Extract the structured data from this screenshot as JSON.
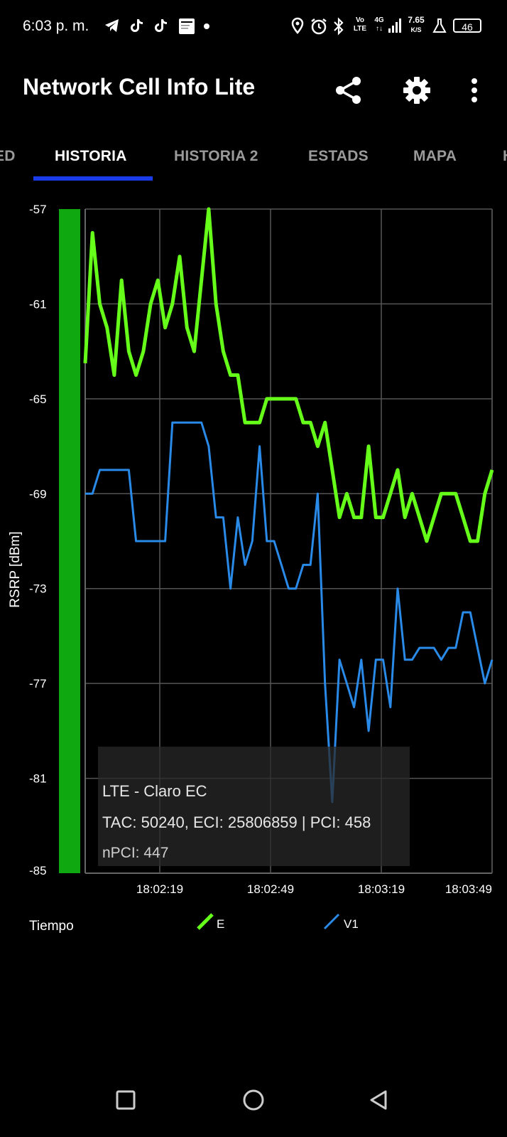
{
  "status_bar": {
    "time": "6:03 p. m.",
    "volte_top": "Vo",
    "volte_bottom": "LTE",
    "network_type": "4G",
    "network_sub": "↑↓",
    "speed_value": "7.65",
    "speed_unit": "K/S",
    "battery": "46",
    "icons": [
      "telegram-icon",
      "tiktok-icon",
      "tiktok-icon",
      "notification-icon",
      "dot-icon",
      "location-icon",
      "alarm-icon",
      "bluetooth-icon",
      "signal-icon",
      "flask-icon",
      "battery-icon"
    ]
  },
  "app_bar": {
    "title": "Network Cell Info Lite",
    "actions": [
      "share-icon",
      "settings-icon",
      "more-icon"
    ]
  },
  "tabs": [
    {
      "label": "ED",
      "active": false
    },
    {
      "label": "HISTORIA",
      "active": true
    },
    {
      "label": "HISTORIA 2",
      "active": false
    },
    {
      "label": "ESTADS",
      "active": false
    },
    {
      "label": "MAPA",
      "active": false
    },
    {
      "label": "H",
      "active": false
    }
  ],
  "chart_data": {
    "type": "line",
    "ylabel": "RSRP [dBm]",
    "xlabel": "Tiempo",
    "ylim": [
      -85,
      -57
    ],
    "y_ticks": [
      -57,
      -61,
      -65,
      -69,
      -73,
      -77,
      -81,
      -85
    ],
    "x_ticks": [
      "18:02:19",
      "18:02:49",
      "18:03:19",
      "18:03:49"
    ],
    "grid": true,
    "legend_placement": "bottom",
    "signal_level": -85,
    "series": [
      {
        "name": "E",
        "color": "#66ff1a",
        "values": [
          -63.5,
          -58,
          -61,
          -62,
          -64,
          -60,
          -63,
          -64,
          -63,
          -61,
          -60,
          -62,
          -61,
          -59,
          -62,
          -63,
          -60,
          -57,
          -61,
          -63,
          -64,
          -64,
          -66,
          -66,
          -66,
          -65,
          -65,
          -65,
          -65,
          -65,
          -66,
          -66,
          -67,
          -66,
          -68,
          -70,
          -69,
          -70,
          -70,
          -67,
          -70,
          -70,
          -69,
          -68,
          -70,
          -69,
          -70,
          -71,
          -70,
          -69,
          -69,
          -69,
          -70,
          -71,
          -71,
          -69,
          -68
        ]
      },
      {
        "name": "V1",
        "color": "#2a8ae8",
        "values": [
          -69,
          -69,
          -68,
          -68,
          -68,
          -68,
          -68,
          -71,
          -71,
          -71,
          -71,
          -71,
          -66,
          -66,
          -66,
          -66,
          -66,
          -67,
          -70,
          -70,
          -73,
          -70,
          -72,
          -71,
          -67,
          -71,
          -71,
          -72,
          -73,
          -73,
          -72,
          -72,
          -69,
          -77,
          -82,
          -76,
          -77,
          -78,
          -76,
          -79,
          -76,
          -76,
          -78,
          -73,
          -76,
          -76,
          -75.5,
          -75.5,
          -75.5,
          -76,
          -75.5,
          -75.5,
          -74,
          -74,
          -75.5,
          -77,
          -76
        ]
      }
    ]
  },
  "info_box": {
    "line1": "LTE - Claro EC",
    "line2": "TAC: 50240, ECI: 25806859 | PCI: 458",
    "line3": "nPCI: 447"
  },
  "nav_bar": [
    "recent-apps-icon",
    "home-icon",
    "back-icon"
  ]
}
